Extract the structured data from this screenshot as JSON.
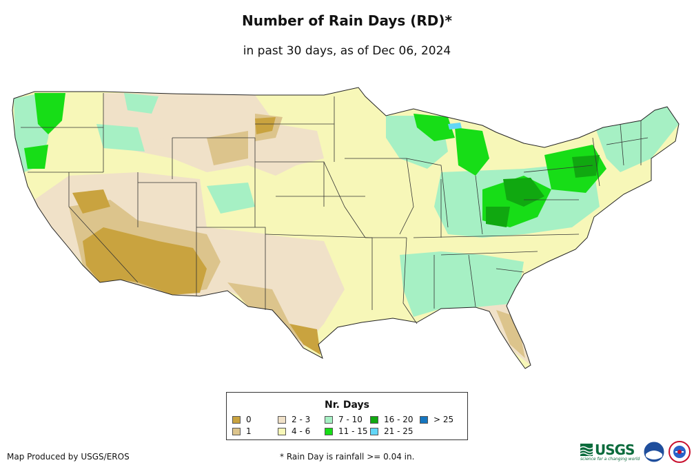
{
  "title": "Number of Rain Days (RD)*",
  "subtitle": "in past 30 days, as of Dec 06, 2024",
  "legend": {
    "title": "Nr. Days",
    "items": [
      {
        "label": "0",
        "color": "#c9a33f"
      },
      {
        "label": "1",
        "color": "#dcc48c"
      },
      {
        "label": "2 - 3",
        "color": "#f0e1c8"
      },
      {
        "label": "4 - 6",
        "color": "#f7f7b8"
      },
      {
        "label": "7 - 10",
        "color": "#a6f0c4"
      },
      {
        "label": "11 - 15",
        "color": "#17dd17"
      },
      {
        "label": "16 - 20",
        "color": "#10a810"
      },
      {
        "label": "21 - 25",
        "color": "#62d6f7"
      },
      {
        "label": "> 25",
        "color": "#1576c0"
      }
    ]
  },
  "credit": "Map Produced by USGS/EROS",
  "footnote": "* Rain Day is rainfall >= 0.04 in.",
  "logos": {
    "usgs": "USGS",
    "usgs_tagline": "science for a changing world"
  }
}
